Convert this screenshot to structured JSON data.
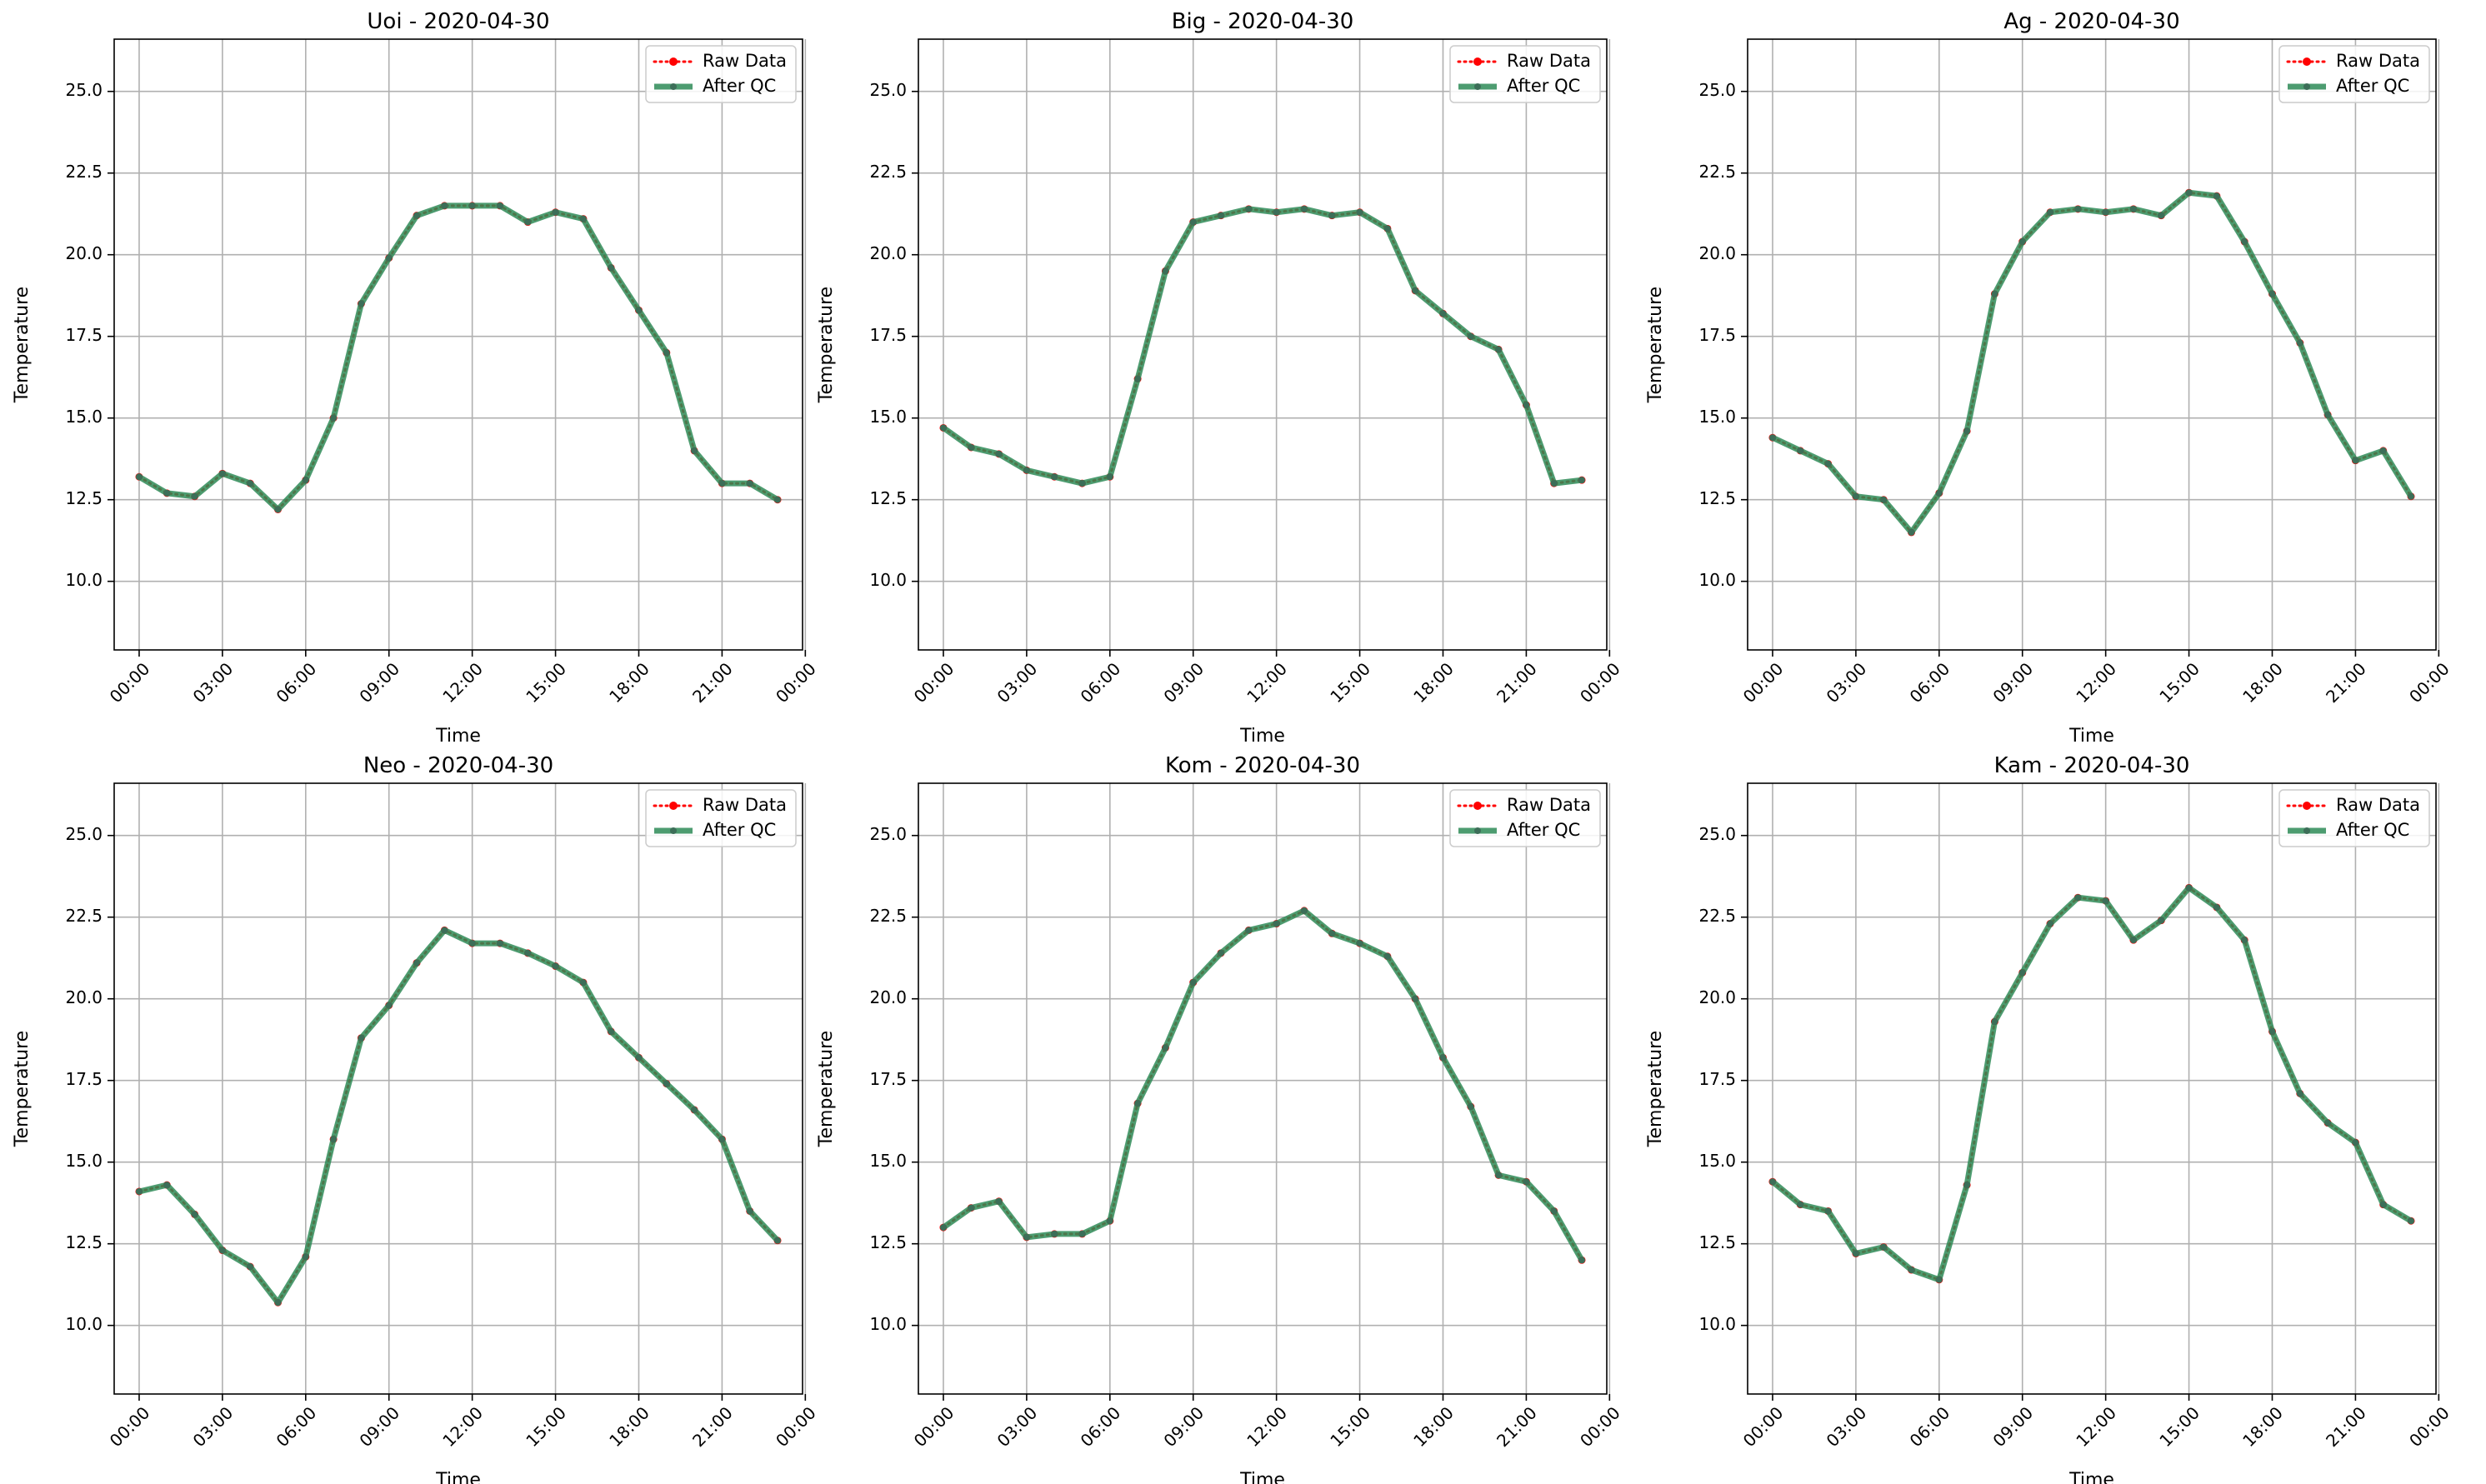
{
  "colors": {
    "raw": "#ff0000",
    "qc": "#2e8b57",
    "grid": "#b0b0b0"
  },
  "chart_data": [
    {
      "type": "line",
      "title": "Uoi - 2020-04-30",
      "xlabel": "Time",
      "ylabel": "Temperature",
      "ylim": [
        7.9,
        26.6
      ],
      "xlim": [
        -0.9,
        23.9
      ],
      "yticks": [
        10.0,
        12.5,
        15.0,
        17.5,
        20.0,
        22.5,
        25.0
      ],
      "ytick_labels": [
        "10.0",
        "12.5",
        "15.0",
        "17.5",
        "20.0",
        "22.5",
        "25.0"
      ],
      "xticks": [
        0,
        3,
        6,
        9,
        12,
        15,
        18,
        21,
        24
      ],
      "xtick_labels": [
        "00:00",
        "03:00",
        "06:00",
        "09:00",
        "12:00",
        "15:00",
        "18:00",
        "21:00",
        "00:00"
      ],
      "grid": true,
      "legend_position": "top-right",
      "x": [
        0,
        1,
        2,
        3,
        4,
        5,
        6,
        7,
        8,
        9,
        10,
        11,
        12,
        13,
        14,
        15,
        16,
        17,
        18,
        19,
        20,
        21,
        22,
        23
      ],
      "series": [
        {
          "name": "Raw Data",
          "style": "dotted",
          "values": [
            13.2,
            12.7,
            12.6,
            13.3,
            13.0,
            12.2,
            13.1,
            15.0,
            18.5,
            19.9,
            21.2,
            21.5,
            21.5,
            21.5,
            21.0,
            21.3,
            21.1,
            19.6,
            18.3,
            17.0,
            14.0,
            13.0,
            13.0,
            12.5
          ]
        },
        {
          "name": "After QC",
          "style": "solid",
          "values": [
            13.2,
            12.7,
            12.6,
            13.3,
            13.0,
            12.2,
            13.1,
            15.0,
            18.5,
            19.9,
            21.2,
            21.5,
            21.5,
            21.5,
            21.0,
            21.3,
            21.1,
            19.6,
            18.3,
            17.0,
            14.0,
            13.0,
            13.0,
            12.5
          ]
        }
      ]
    },
    {
      "type": "line",
      "title": "Big - 2020-04-30",
      "xlabel": "Time",
      "ylabel": "Temperature",
      "ylim": [
        7.9,
        26.6
      ],
      "xlim": [
        -0.9,
        23.9
      ],
      "yticks": [
        10.0,
        12.5,
        15.0,
        17.5,
        20.0,
        22.5,
        25.0
      ],
      "ytick_labels": [
        "10.0",
        "12.5",
        "15.0",
        "17.5",
        "20.0",
        "22.5",
        "25.0"
      ],
      "xticks": [
        0,
        3,
        6,
        9,
        12,
        15,
        18,
        21,
        24
      ],
      "xtick_labels": [
        "00:00",
        "03:00",
        "06:00",
        "09:00",
        "12:00",
        "15:00",
        "18:00",
        "21:00",
        "00:00"
      ],
      "grid": true,
      "legend_position": "top-right",
      "x": [
        0,
        1,
        2,
        3,
        4,
        5,
        6,
        7,
        8,
        9,
        10,
        11,
        12,
        13,
        14,
        15,
        16,
        17,
        18,
        19,
        20,
        21,
        22,
        23
      ],
      "series": [
        {
          "name": "Raw Data",
          "style": "dotted",
          "values": [
            14.7,
            14.1,
            13.9,
            13.4,
            13.2,
            13.0,
            13.2,
            16.2,
            19.5,
            21.0,
            21.2,
            21.4,
            21.3,
            21.4,
            21.2,
            21.3,
            20.8,
            18.9,
            18.2,
            17.5,
            17.1,
            15.4,
            13.0,
            13.1
          ]
        },
        {
          "name": "After QC",
          "style": "solid",
          "values": [
            14.7,
            14.1,
            13.9,
            13.4,
            13.2,
            13.0,
            13.2,
            16.2,
            19.5,
            21.0,
            21.2,
            21.4,
            21.3,
            21.4,
            21.2,
            21.3,
            20.8,
            18.9,
            18.2,
            17.5,
            17.1,
            15.4,
            13.0,
            13.1
          ]
        }
      ]
    },
    {
      "type": "line",
      "title": "Ag - 2020-04-30",
      "xlabel": "Time",
      "ylabel": "Temperature",
      "ylim": [
        7.9,
        26.6
      ],
      "xlim": [
        -0.9,
        23.9
      ],
      "yticks": [
        10.0,
        12.5,
        15.0,
        17.5,
        20.0,
        22.5,
        25.0
      ],
      "ytick_labels": [
        "10.0",
        "12.5",
        "15.0",
        "17.5",
        "20.0",
        "22.5",
        "25.0"
      ],
      "xticks": [
        0,
        3,
        6,
        9,
        12,
        15,
        18,
        21,
        24
      ],
      "xtick_labels": [
        "00:00",
        "03:00",
        "06:00",
        "09:00",
        "12:00",
        "15:00",
        "18:00",
        "21:00",
        "00:00"
      ],
      "grid": true,
      "legend_position": "top-right",
      "x": [
        0,
        1,
        2,
        3,
        4,
        5,
        6,
        7,
        8,
        9,
        10,
        11,
        12,
        13,
        14,
        15,
        16,
        17,
        18,
        19,
        20,
        21,
        22,
        23
      ],
      "series": [
        {
          "name": "Raw Data",
          "style": "dotted",
          "values": [
            14.4,
            14.0,
            13.6,
            12.6,
            12.5,
            11.5,
            12.7,
            14.6,
            18.8,
            20.4,
            21.3,
            21.4,
            21.3,
            21.4,
            21.2,
            21.9,
            21.8,
            20.4,
            18.8,
            17.3,
            15.1,
            13.7,
            14.0,
            12.6
          ]
        },
        {
          "name": "After QC",
          "style": "solid",
          "values": [
            14.4,
            14.0,
            13.6,
            12.6,
            12.5,
            11.5,
            12.7,
            14.6,
            18.8,
            20.4,
            21.3,
            21.4,
            21.3,
            21.4,
            21.2,
            21.9,
            21.8,
            20.4,
            18.8,
            17.3,
            15.1,
            13.7,
            14.0,
            12.6
          ]
        }
      ]
    },
    {
      "type": "line",
      "title": "Neo - 2020-04-30",
      "xlabel": "Time",
      "ylabel": "Temperature",
      "ylim": [
        7.9,
        26.6
      ],
      "xlim": [
        -0.9,
        23.9
      ],
      "yticks": [
        10.0,
        12.5,
        15.0,
        17.5,
        20.0,
        22.5,
        25.0
      ],
      "ytick_labels": [
        "10.0",
        "12.5",
        "15.0",
        "17.5",
        "20.0",
        "22.5",
        "25.0"
      ],
      "xticks": [
        0,
        3,
        6,
        9,
        12,
        15,
        18,
        21,
        24
      ],
      "xtick_labels": [
        "00:00",
        "03:00",
        "06:00",
        "09:00",
        "12:00",
        "15:00",
        "18:00",
        "21:00",
        "00:00"
      ],
      "grid": true,
      "legend_position": "top-right",
      "x": [
        0,
        1,
        2,
        3,
        4,
        5,
        6,
        7,
        8,
        9,
        10,
        11,
        12,
        13,
        14,
        15,
        16,
        17,
        18,
        19,
        20,
        21,
        22,
        23
      ],
      "series": [
        {
          "name": "Raw Data",
          "style": "dotted",
          "values": [
            14.1,
            14.3,
            13.4,
            12.3,
            11.8,
            10.7,
            12.1,
            15.7,
            18.8,
            19.8,
            21.1,
            22.1,
            21.7,
            21.7,
            21.4,
            21.0,
            20.5,
            19.0,
            18.2,
            17.4,
            16.6,
            15.7,
            13.5,
            12.6
          ]
        },
        {
          "name": "After QC",
          "style": "solid",
          "values": [
            14.1,
            14.3,
            13.4,
            12.3,
            11.8,
            10.7,
            12.1,
            15.7,
            18.8,
            19.8,
            21.1,
            22.1,
            21.7,
            21.7,
            21.4,
            21.0,
            20.5,
            19.0,
            18.2,
            17.4,
            16.6,
            15.7,
            13.5,
            12.6
          ]
        }
      ]
    },
    {
      "type": "line",
      "title": "Kom - 2020-04-30",
      "xlabel": "Time",
      "ylabel": "Temperature",
      "ylim": [
        7.9,
        26.6
      ],
      "xlim": [
        -0.9,
        23.9
      ],
      "yticks": [
        10.0,
        12.5,
        15.0,
        17.5,
        20.0,
        22.5,
        25.0
      ],
      "ytick_labels": [
        "10.0",
        "12.5",
        "15.0",
        "17.5",
        "20.0",
        "22.5",
        "25.0"
      ],
      "xticks": [
        0,
        3,
        6,
        9,
        12,
        15,
        18,
        21,
        24
      ],
      "xtick_labels": [
        "00:00",
        "03:00",
        "06:00",
        "09:00",
        "12:00",
        "15:00",
        "18:00",
        "21:00",
        "00:00"
      ],
      "grid": true,
      "legend_position": "top-right",
      "x": [
        0,
        1,
        2,
        3,
        4,
        5,
        6,
        7,
        8,
        9,
        10,
        11,
        12,
        13,
        14,
        15,
        16,
        17,
        18,
        19,
        20,
        21,
        22,
        23
      ],
      "series": [
        {
          "name": "Raw Data",
          "style": "dotted",
          "values": [
            13.0,
            13.6,
            13.8,
            12.7,
            12.8,
            12.8,
            13.2,
            16.8,
            18.5,
            20.5,
            21.4,
            22.1,
            22.3,
            22.7,
            22.0,
            21.7,
            21.3,
            20.0,
            18.2,
            16.7,
            14.6,
            14.4,
            13.5,
            12.0
          ]
        },
        {
          "name": "After QC",
          "style": "solid",
          "values": [
            13.0,
            13.6,
            13.8,
            12.7,
            12.8,
            12.8,
            13.2,
            16.8,
            18.5,
            20.5,
            21.4,
            22.1,
            22.3,
            22.7,
            22.0,
            21.7,
            21.3,
            20.0,
            18.2,
            16.7,
            14.6,
            14.4,
            13.5,
            12.0
          ]
        }
      ]
    },
    {
      "type": "line",
      "title": "Kam - 2020-04-30",
      "xlabel": "Time",
      "ylabel": "Temperature",
      "ylim": [
        7.9,
        26.6
      ],
      "xlim": [
        -0.9,
        23.9
      ],
      "yticks": [
        10.0,
        12.5,
        15.0,
        17.5,
        20.0,
        22.5,
        25.0
      ],
      "ytick_labels": [
        "10.0",
        "12.5",
        "15.0",
        "17.5",
        "20.0",
        "22.5",
        "25.0"
      ],
      "xticks": [
        0,
        3,
        6,
        9,
        12,
        15,
        18,
        21,
        24
      ],
      "xtick_labels": [
        "00:00",
        "03:00",
        "06:00",
        "09:00",
        "12:00",
        "15:00",
        "18:00",
        "21:00",
        "00:00"
      ],
      "grid": true,
      "legend_position": "top-right",
      "x": [
        0,
        1,
        2,
        3,
        4,
        5,
        6,
        7,
        8,
        9,
        10,
        11,
        12,
        13,
        14,
        15,
        16,
        17,
        18,
        19,
        20,
        21,
        22,
        23
      ],
      "series": [
        {
          "name": "Raw Data",
          "style": "dotted",
          "values": [
            14.4,
            13.7,
            13.5,
            12.2,
            12.4,
            11.7,
            11.4,
            14.3,
            19.3,
            20.8,
            22.3,
            23.1,
            23.0,
            21.8,
            22.4,
            23.4,
            22.8,
            21.8,
            19.0,
            17.1,
            16.2,
            15.6,
            13.7,
            13.2
          ]
        },
        {
          "name": "After QC",
          "style": "solid",
          "values": [
            14.4,
            13.7,
            13.5,
            12.2,
            12.4,
            11.7,
            11.4,
            14.3,
            19.3,
            20.8,
            22.3,
            23.1,
            23.0,
            21.8,
            22.4,
            23.4,
            22.8,
            21.8,
            19.0,
            17.1,
            16.2,
            15.6,
            13.7,
            13.2
          ]
        }
      ]
    }
  ]
}
